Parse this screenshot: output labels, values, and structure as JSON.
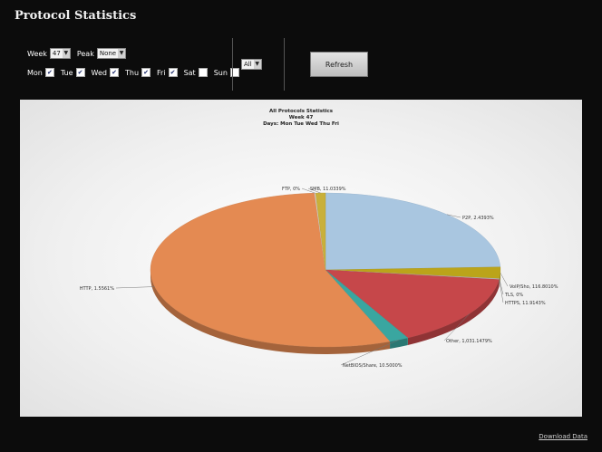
{
  "page": {
    "title": "Protocol Statistics",
    "download_label": "Download Data"
  },
  "filters": {
    "week_label": "Week",
    "week_value": "47",
    "peak_label": "Peak",
    "peak_value": "None",
    "days": [
      {
        "label": "Mon",
        "checked": true
      },
      {
        "label": "Tue",
        "checked": true
      },
      {
        "label": "Wed",
        "checked": true
      },
      {
        "label": "Thu",
        "checked": true
      },
      {
        "label": "Fri",
        "checked": true
      },
      {
        "label": "Sat",
        "checked": false
      },
      {
        "label": "Sun",
        "checked": false
      }
    ],
    "protocol_value": "All",
    "refresh_label": "Refresh"
  },
  "chart_data": {
    "type": "pie",
    "title": "All Protocols Statistics",
    "subtitle_week": "Week 47",
    "subtitle_days": "Days: Mon Tue Wed Thu Fri",
    "slices": [
      {
        "label": "P2P, 2.4393%",
        "value": 24.4,
        "color": "#a9c6e0"
      },
      {
        "label": "VoIP/Sho, 116.8010%",
        "value": 2.4,
        "color": "#bba41a"
      },
      {
        "label": "TLS, 0%",
        "value": 0.1,
        "color": "#b8b8b8"
      },
      {
        "label": "HTTPS, 11.9143%",
        "value": 0.1,
        "color": "#c9c9c9"
      },
      {
        "label": "Other, 1,031.1479%",
        "value": 15.2,
        "color": "#c6474a"
      },
      {
        "label": "NetBIOS/Share, 10.5000%",
        "value": 1.8,
        "color": "#3aa6a0"
      },
      {
        "label": "HTTP, 1.5561%",
        "value": 55.0,
        "color": "#e48a52"
      },
      {
        "label": "FTP, 0%",
        "value": 0.1,
        "color": "#d6d6d6"
      },
      {
        "label": "SMB, 11.0339%",
        "value": 0.9,
        "color": "#c9b03a"
      }
    ]
  }
}
